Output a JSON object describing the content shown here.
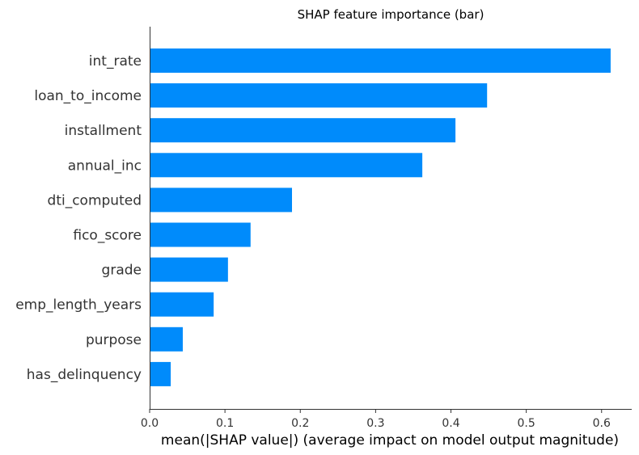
{
  "chart_data": {
    "type": "bar",
    "orientation": "horizontal",
    "title": "SHAP feature importance (bar)",
    "xlabel": "mean(|SHAP value|) (average impact on model output magnitude)",
    "ylabel": "",
    "categories": [
      "int_rate",
      "loan_to_income",
      "installment",
      "annual_inc",
      "dti_computed",
      "fico_score",
      "grade",
      "emp_length_years",
      "purpose",
      "has_delinquency"
    ],
    "values": [
      0.612,
      0.448,
      0.406,
      0.362,
      0.189,
      0.134,
      0.104,
      0.085,
      0.044,
      0.028
    ],
    "xlim": [
      0,
      0.64
    ],
    "xticks": [
      0.0,
      0.1,
      0.2,
      0.3,
      0.4,
      0.5,
      0.6
    ],
    "xtick_labels": [
      "0.0",
      "0.1",
      "0.2",
      "0.3",
      "0.4",
      "0.5",
      "0.6"
    ],
    "grid": false,
    "bar_color": "#008bfb",
    "axis_color": "#333333"
  }
}
